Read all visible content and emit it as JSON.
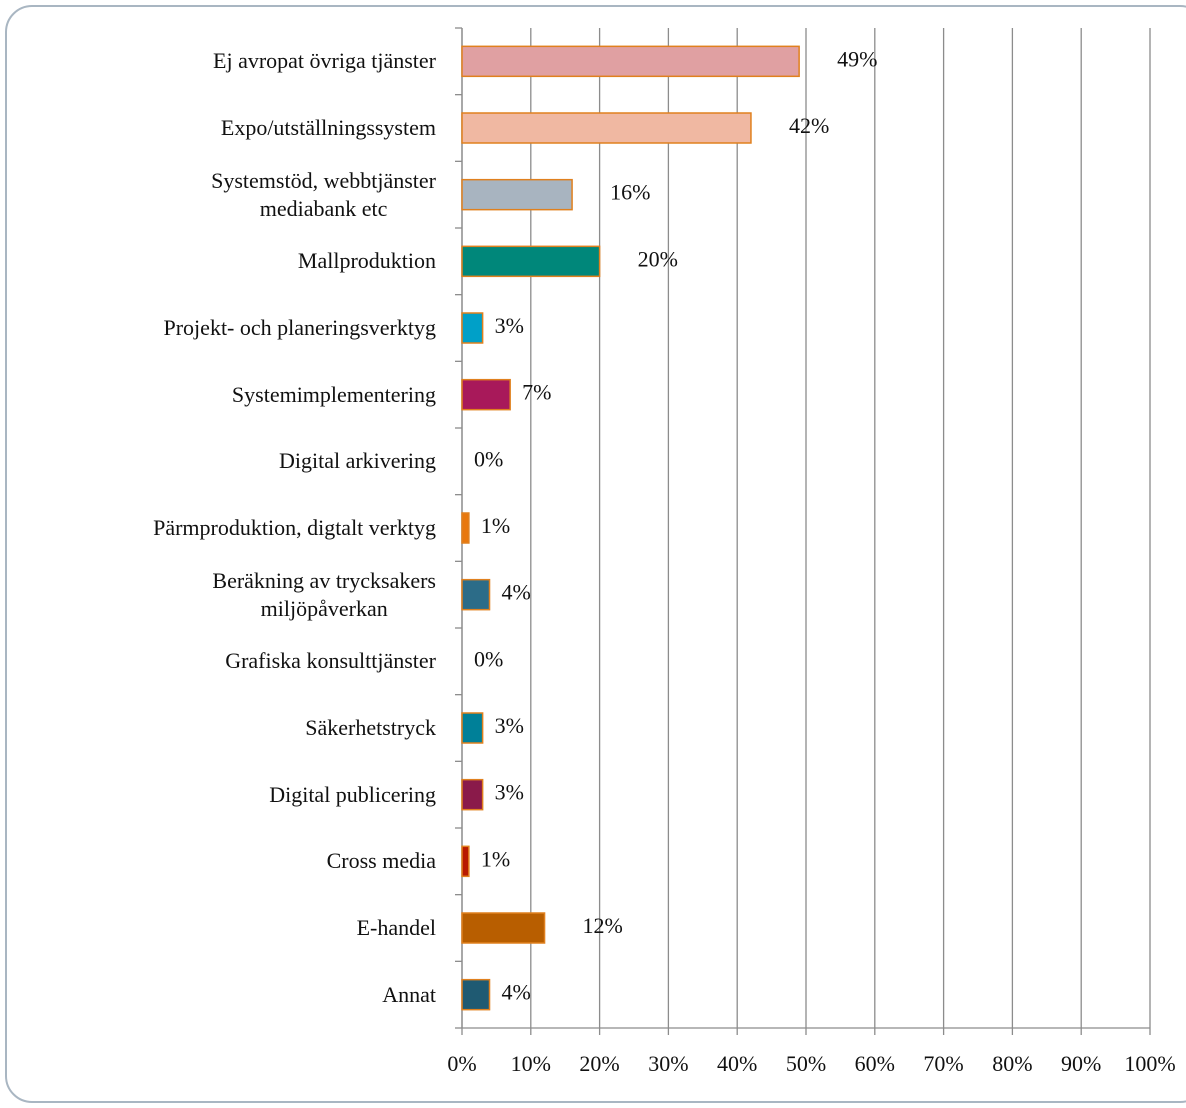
{
  "chart_data": {
    "type": "barh",
    "categories": [
      "Ej avropat övriga tjänster",
      "Expo/utställningssystem",
      "Systemstöd, webbtjänster\nmediabank etc",
      "Mallproduktion",
      "Projekt- och planeringsverktyg",
      "Systemimplementering",
      "Digital arkivering",
      "Pärmproduktion, digtalt verktyg",
      "Beräkning av trycksakers\nmiljöpåverkan",
      "Grafiska konsulttjänster",
      "Säkerhetstryck",
      "Digital publicering",
      "Cross media",
      "E-handel",
      "Annat"
    ],
    "values": [
      49,
      42,
      16,
      20,
      3,
      7,
      0,
      1,
      4,
      0,
      3,
      3,
      1,
      12,
      4
    ],
    "value_labels": [
      "49%",
      "42%",
      "16%",
      "20%",
      "3%",
      "7%",
      "0%",
      "1%",
      "4%",
      "0%",
      "3%",
      "3%",
      "1%",
      "12%",
      "4%"
    ],
    "colors": [
      "#e0a0a2",
      "#f0b8a2",
      "#a8b4c0",
      "#00877a",
      "#00a0c8",
      "#a8195a",
      null,
      "#e8780e",
      "#2c6c88",
      null,
      "#008098",
      "#8a1a4a",
      "#b81a00",
      "#b85e00",
      "#1f5a72"
    ],
    "edge_color": "#e0801e",
    "xlim": [
      0,
      100
    ],
    "xticks": [
      {
        "value": 0,
        "label": "0%"
      },
      {
        "value": 10,
        "label": "10%"
      },
      {
        "value": 20,
        "label": "20%"
      },
      {
        "value": 30,
        "label": "30%"
      },
      {
        "value": 40,
        "label": "40%"
      },
      {
        "value": 50,
        "label": "50%"
      },
      {
        "value": 60,
        "label": "60%"
      },
      {
        "value": 70,
        "label": "70%"
      },
      {
        "value": 80,
        "label": "80%"
      },
      {
        "value": 90,
        "label": "90%"
      },
      {
        "value": 100,
        "label": "100%"
      }
    ],
    "grid": true
  }
}
